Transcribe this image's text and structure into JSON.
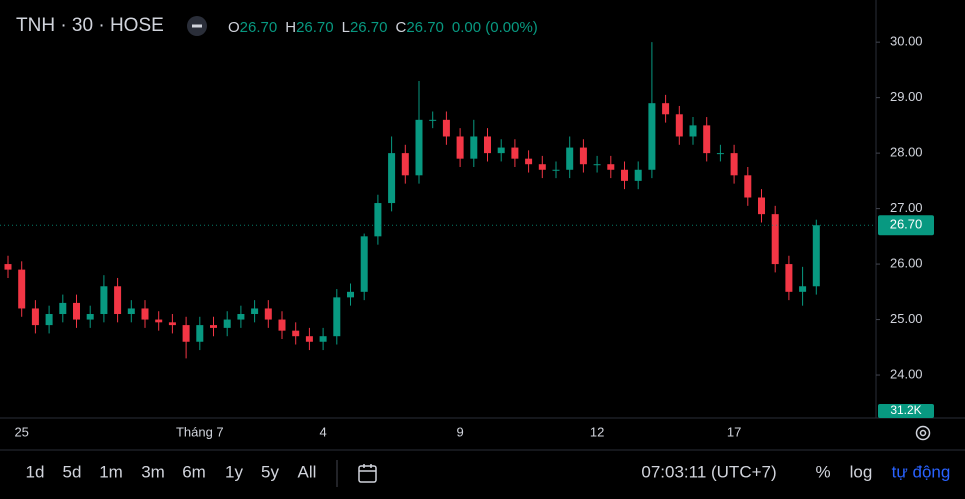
{
  "header": {
    "symbol": "TNH · 30 · HOSE",
    "ohlc": [
      {
        "key": "O",
        "value": "26.70"
      },
      {
        "key": "H",
        "value": "26.70"
      },
      {
        "key": "L",
        "value": "26.70"
      },
      {
        "key": "C",
        "value": "26.70"
      }
    ],
    "change": "0.00 (0.00%)"
  },
  "volume_badge": "31.2K",
  "toolbar": {
    "ranges": [
      "1d",
      "5d",
      "1m",
      "3m",
      "6m",
      "1y",
      "5y",
      "All"
    ],
    "clock": "07:03:11 (UTC+7)",
    "percent": "%",
    "log": "log",
    "auto": "tự động"
  },
  "chart_data": {
    "type": "candlestick",
    "up_color": "#089981",
    "down_color": "#f23645",
    "grid": false,
    "categories": [
      null,
      "25",
      null,
      null,
      null,
      null,
      null,
      null,
      null,
      null,
      null,
      null,
      null,
      null,
      "Tháng 7",
      null,
      null,
      null,
      null,
      null,
      null,
      null,
      null,
      "4",
      null,
      null,
      null,
      null,
      null,
      null,
      null,
      null,
      null,
      "9",
      null,
      null,
      null,
      null,
      null,
      null,
      null,
      null,
      null,
      "12",
      null,
      null,
      null,
      null,
      null,
      null,
      null,
      null,
      null,
      "17",
      null,
      null,
      null,
      null,
      null,
      null
    ],
    "open": [
      26.0,
      25.9,
      25.2,
      24.9,
      25.1,
      25.3,
      25.0,
      25.1,
      25.6,
      25.1,
      25.2,
      25.0,
      24.95,
      24.9,
      24.6,
      24.9,
      24.85,
      25.0,
      25.1,
      25.2,
      25.0,
      24.8,
      24.7,
      24.6,
      24.7,
      25.4,
      25.5,
      26.5,
      27.1,
      28.0,
      27.6,
      28.6,
      28.6,
      28.3,
      27.9,
      28.3,
      28.0,
      28.1,
      27.9,
      27.8,
      27.7,
      27.7,
      28.1,
      27.8,
      27.8,
      27.7,
      27.5,
      27.7,
      28.9,
      28.7,
      28.3,
      28.5,
      28.0,
      28.0,
      27.6,
      27.2,
      26.9,
      26.0,
      25.5,
      25.6
    ],
    "high": [
      26.15,
      26.05,
      25.35,
      25.25,
      25.45,
      25.45,
      25.25,
      25.8,
      25.75,
      25.35,
      25.35,
      25.15,
      25.1,
      25.05,
      25.05,
      25.05,
      25.15,
      25.25,
      25.35,
      25.35,
      25.15,
      24.95,
      24.85,
      24.85,
      25.55,
      25.65,
      26.55,
      27.25,
      28.3,
      28.15,
      29.3,
      28.75,
      28.75,
      28.45,
      28.6,
      28.45,
      28.25,
      28.25,
      28.05,
      27.95,
      27.85,
      28.3,
      28.25,
      27.95,
      27.95,
      27.85,
      27.85,
      30.0,
      29.05,
      28.85,
      28.65,
      28.65,
      28.15,
      28.15,
      27.75,
      27.35,
      27.05,
      26.15,
      25.95,
      26.8
    ],
    "low": [
      25.75,
      25.05,
      24.75,
      24.75,
      24.95,
      24.85,
      24.85,
      24.95,
      24.95,
      24.95,
      24.85,
      24.8,
      24.75,
      24.3,
      24.45,
      24.7,
      24.7,
      24.85,
      24.95,
      24.85,
      24.65,
      24.55,
      24.45,
      24.45,
      24.55,
      25.25,
      25.35,
      26.35,
      26.95,
      27.45,
      27.45,
      28.45,
      28.15,
      27.75,
      27.75,
      27.85,
      27.85,
      27.75,
      27.65,
      27.55,
      27.55,
      27.55,
      27.65,
      27.65,
      27.55,
      27.35,
      27.35,
      27.55,
      28.55,
      28.15,
      28.15,
      27.85,
      27.85,
      27.45,
      27.05,
      26.75,
      25.85,
      25.35,
      25.25,
      25.45
    ],
    "close": [
      25.9,
      25.2,
      24.9,
      25.1,
      25.3,
      25.0,
      25.1,
      25.6,
      25.1,
      25.2,
      25.0,
      24.95,
      24.9,
      24.6,
      24.9,
      24.85,
      25.0,
      25.1,
      25.2,
      25.0,
      24.8,
      24.7,
      24.6,
      24.7,
      25.4,
      25.5,
      26.5,
      27.1,
      28.0,
      27.6,
      28.6,
      28.6,
      28.3,
      27.9,
      28.3,
      28.0,
      28.1,
      27.9,
      27.8,
      27.7,
      27.7,
      28.1,
      27.8,
      27.8,
      27.7,
      27.5,
      27.7,
      28.9,
      28.7,
      28.3,
      28.5,
      28.0,
      28.0,
      27.6,
      27.2,
      26.9,
      26.0,
      25.5,
      25.6,
      26.7
    ],
    "ylim": [
      23.55,
      30.76
    ],
    "yticks": [
      {
        "value": 24,
        "label": "24.00"
      },
      {
        "value": 25,
        "label": "25.00"
      },
      {
        "value": 26,
        "label": "26.00"
      },
      {
        "value": 27,
        "label": "27.00"
      },
      {
        "value": 28,
        "label": "28.00"
      },
      {
        "value": 29,
        "label": "29.00"
      },
      {
        "value": 30,
        "label": "30.00"
      }
    ],
    "last_price": {
      "value": 26.7,
      "label": "26.70"
    }
  }
}
